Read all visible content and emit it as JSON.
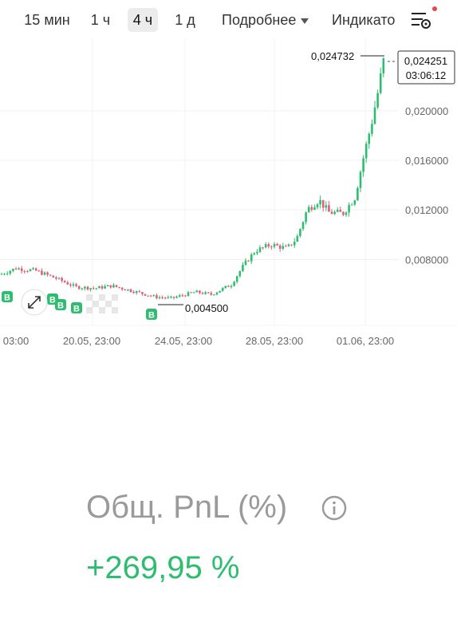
{
  "toolbar": {
    "timeframes": [
      {
        "label": "15 мин",
        "active": false
      },
      {
        "label": "1 ч",
        "active": false
      },
      {
        "label": "4 ч",
        "active": true
      },
      {
        "label": "1 д",
        "active": false
      }
    ],
    "more_label": "Подробнее",
    "indicators_label": "Индикато"
  },
  "chart": {
    "y_ticks": [
      "0,020000",
      "0,016000",
      "0,012000",
      "0,008000"
    ],
    "x_ticks": [
      "03:00",
      "20.05, 23:00",
      "24.05, 23:00",
      "28.05, 23:00",
      "01.06, 23:00"
    ],
    "high_label": "0,024732",
    "low_label": "0,004500",
    "current_price": "0,024251",
    "countdown": "03:06:12",
    "buy_marker_label": "B",
    "colors": {
      "up": "#2ebd6f",
      "down": "#e35d7a",
      "grid": "#f0f0f0"
    }
  },
  "pnl": {
    "label": "Общ. PnL (%)",
    "value": "+269,95 %"
  }
}
